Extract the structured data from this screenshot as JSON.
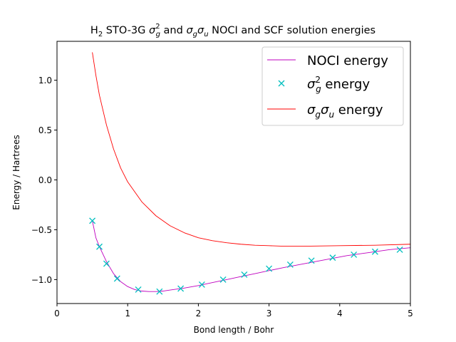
{
  "chart_data": {
    "type": "line",
    "title": {
      "prefix": "H",
      "prefix_sub": "2",
      "rest1": " STO-3G ",
      "sigma": "σ",
      "g": "g",
      "sup2": "2",
      "rest2": " and ",
      "u": "u",
      "rest3": " NOCI and SCF solution energies"
    },
    "xlabel": "Bond length / Bohr",
    "ylabel": "Energy / Hartrees",
    "xlim": [
      0,
      5
    ],
    "ylim": [
      -1.24,
      1.39
    ],
    "xticks": [
      0,
      1,
      2,
      3,
      4,
      5
    ],
    "xtick_labels": [
      "0",
      "1",
      "2",
      "3",
      "4",
      "5"
    ],
    "yticks": [
      -1.0,
      -0.5,
      0.0,
      0.5,
      1.0
    ],
    "ytick_labels": [
      "−1.0",
      "−0.5",
      "0.0",
      "0.5",
      "1.0"
    ],
    "legend": {
      "placement": "top-right",
      "entries": [
        {
          "label": "NOCI energy"
        },
        {
          "sigma": "σ",
          "sub": "g",
          "sup": "2",
          "tail": " energy"
        },
        {
          "sigma": "σ",
          "sub": "g",
          "sigma2": "σ",
          "sub2": "u",
          "tail": " energy"
        }
      ]
    },
    "series": [
      {
        "key": "noci",
        "style": "line",
        "color": "#bf00bf",
        "x": [
          0.5,
          0.55,
          0.6,
          0.7,
          0.8,
          0.9,
          1.0,
          1.1,
          1.2,
          1.3,
          1.4,
          1.5,
          1.6,
          1.7,
          1.8,
          2.0,
          2.2,
          2.4,
          2.6,
          2.8,
          3.0,
          3.2,
          3.5,
          3.8,
          4.1,
          4.4,
          4.7,
          5.0
        ],
        "y": [
          -0.41,
          -0.58,
          -0.67,
          -0.82,
          -0.94,
          -1.02,
          -1.07,
          -1.1,
          -1.115,
          -1.12,
          -1.12,
          -1.115,
          -1.105,
          -1.095,
          -1.085,
          -1.06,
          -1.03,
          -1.0,
          -0.97,
          -0.94,
          -0.91,
          -0.88,
          -0.84,
          -0.8,
          -0.76,
          -0.73,
          -0.7,
          -0.68
        ]
      },
      {
        "key": "sigma_g2",
        "style": "marker-x",
        "color": "#00bfbf",
        "x": [
          0.5,
          0.6,
          0.7,
          0.85,
          1.15,
          1.45,
          1.75,
          2.05,
          2.35,
          2.65,
          3.0,
          3.3,
          3.6,
          3.9,
          4.2,
          4.5,
          4.85
        ],
        "y": [
          -0.41,
          -0.67,
          -0.84,
          -0.99,
          -1.1,
          -1.12,
          -1.09,
          -1.05,
          -1.0,
          -0.95,
          -0.89,
          -0.85,
          -0.81,
          -0.78,
          -0.75,
          -0.72,
          -0.7
        ]
      },
      {
        "key": "sigma_g_sigma_u",
        "style": "line",
        "color": "#ff0000",
        "x": [
          0.5,
          0.55,
          0.6,
          0.7,
          0.8,
          0.9,
          1.0,
          1.2,
          1.4,
          1.6,
          1.8,
          2.0,
          2.2,
          2.4,
          2.6,
          2.8,
          3.0,
          3.2,
          3.5,
          4.0,
          4.5,
          5.0
        ],
        "y": [
          1.28,
          1.05,
          0.85,
          0.55,
          0.31,
          0.12,
          -0.02,
          -0.22,
          -0.36,
          -0.46,
          -0.53,
          -0.58,
          -0.61,
          -0.63,
          -0.645,
          -0.655,
          -0.66,
          -0.665,
          -0.665,
          -0.66,
          -0.655,
          -0.645
        ]
      }
    ]
  }
}
